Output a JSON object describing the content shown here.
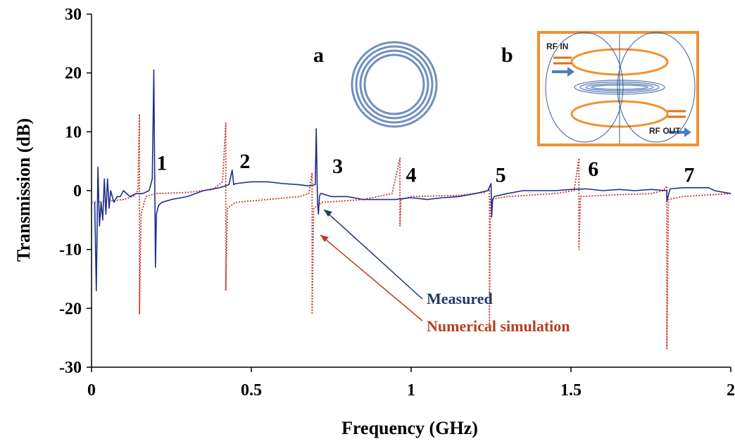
{
  "chart_data": {
    "type": "line",
    "xlabel": "Frequency (GHz)",
    "ylabel": "Transmission (dB)",
    "xlim": [
      0,
      2
    ],
    "ylim": [
      -30,
      30
    ],
    "x_ticks": [
      "0",
      "0.5",
      "1",
      "1.5",
      "2"
    ],
    "y_ticks": [
      "-30",
      "-20",
      "-10",
      "0",
      "10",
      "20",
      "30"
    ],
    "grid": false,
    "series": [
      {
        "name": "Measured",
        "color": "#1f2f8a",
        "style": "solid",
        "x": [
          0.01,
          0.015,
          0.02,
          0.025,
          0.03,
          0.035,
          0.04,
          0.045,
          0.05,
          0.055,
          0.06,
          0.07,
          0.08,
          0.09,
          0.1,
          0.12,
          0.14,
          0.16,
          0.18,
          0.19,
          0.195,
          0.198,
          0.2,
          0.203,
          0.207,
          0.21,
          0.22,
          0.25,
          0.3,
          0.35,
          0.4,
          0.43,
          0.44,
          0.445,
          0.45,
          0.5,
          0.55,
          0.6,
          0.65,
          0.68,
          0.7,
          0.703,
          0.707,
          0.71,
          0.713,
          0.716,
          0.72,
          0.75,
          0.8,
          0.85,
          0.9,
          0.95,
          1.0,
          1.05,
          1.1,
          1.15,
          1.2,
          1.24,
          1.25,
          1.252,
          1.255,
          1.26,
          1.3,
          1.35,
          1.4,
          1.45,
          1.5,
          1.55,
          1.6,
          1.65,
          1.7,
          1.75,
          1.8,
          1.8,
          1.81,
          1.85,
          1.9,
          1.93,
          1.95,
          2.0
        ],
        "y": [
          -2,
          -17,
          4,
          -6,
          -2,
          -5,
          2,
          -4,
          2,
          -3,
          0,
          -2,
          -1,
          -1,
          0,
          -1,
          -0.5,
          -0.5,
          0,
          2,
          20.5,
          0,
          -13,
          -4,
          -3,
          -2.5,
          -2,
          -1.5,
          -1,
          0,
          0.5,
          1,
          3.5,
          1,
          1.2,
          1.5,
          1.5,
          1.2,
          1,
          0.8,
          1,
          10.5,
          -2,
          -4,
          -1,
          -0.5,
          -0.5,
          -1,
          -1,
          -1.5,
          -1.5,
          -1.5,
          -1.2,
          -1.5,
          -1.2,
          -1,
          -0.5,
          0,
          1.2,
          -4.5,
          -1.5,
          -1,
          -0.5,
          0,
          0,
          0,
          0.2,
          0.3,
          0,
          0.2,
          0,
          0.2,
          0,
          -1.8,
          0.3,
          0.5,
          0.5,
          0.5,
          0,
          -0.5
        ]
      },
      {
        "name": "Numerical simulation",
        "color": "#c0392b",
        "style": "dotted",
        "x": [
          0.0,
          0.05,
          0.1,
          0.13,
          0.145,
          0.15,
          0.15,
          0.155,
          0.17,
          0.2,
          0.3,
          0.38,
          0.41,
          0.42,
          0.42,
          0.425,
          0.45,
          0.55,
          0.65,
          0.68,
          0.69,
          0.69,
          0.695,
          0.72,
          0.85,
          0.94,
          0.965,
          0.965,
          0.968,
          1.0,
          1.15,
          1.23,
          1.245,
          1.245,
          1.248,
          1.3,
          1.45,
          1.51,
          1.525,
          1.525,
          1.53,
          1.6,
          1.75,
          1.79,
          1.8,
          1.8,
          1.805,
          1.85,
          2.0
        ],
        "y": [
          -2,
          -1.8,
          -1.5,
          -1,
          0,
          13,
          -21,
          -4,
          -1,
          -0.5,
          -0.3,
          0.2,
          1.5,
          11.5,
          -17,
          -3,
          -2,
          -1.5,
          -1,
          -0.5,
          3,
          -21,
          -3,
          -2,
          -1.5,
          -0.5,
          5.5,
          -6,
          -1.5,
          -1,
          -0.8,
          -0.3,
          0.3,
          -23,
          -1.5,
          -1,
          -0.5,
          0,
          5.5,
          -10,
          -1,
          -0.8,
          -0.5,
          0,
          0.8,
          -27,
          -1.5,
          -1,
          -0.5
        ]
      }
    ],
    "peak_labels": [
      {
        "text": "1",
        "x": 0.22,
        "y": 3.5
      },
      {
        "text": "2",
        "x": 0.48,
        "y": 3.8
      },
      {
        "text": "3",
        "x": 0.77,
        "y": 3.0
      },
      {
        "text": "4",
        "x": 1.0,
        "y": 1.5
      },
      {
        "text": "5",
        "x": 1.28,
        "y": 1.5
      },
      {
        "text": "6",
        "x": 1.57,
        "y": 2.5
      },
      {
        "text": "7",
        "x": 1.87,
        "y": 1.5
      }
    ],
    "annotations": {
      "measured_label": "Measured",
      "simulation_label": "Numerical simulation",
      "measured_color": "#1f3a6b",
      "simulation_color": "#b5401f"
    },
    "insets": {
      "a_label": "a",
      "b_label": "b",
      "rf_in": "RF IN",
      "rf_out": "RF OUT"
    }
  }
}
